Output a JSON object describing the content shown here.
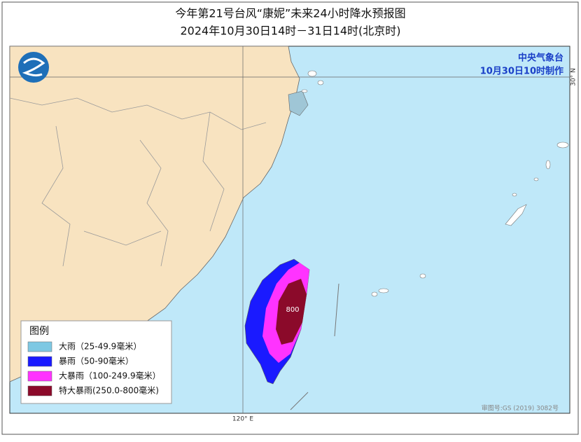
{
  "header": {
    "title": "今年第21号台风“康妮”未来24小时降水预报图",
    "subtitle": "2024年10月30日14时－31日14时(北京时)"
  },
  "issuer": {
    "agency": "中央气象台",
    "made": "10月30日10时制作"
  },
  "map": {
    "lat_label": "30° N",
    "lon_label": "120° E",
    "contour_label": "800",
    "review_number": "审图号:GS (2019) 3082号"
  },
  "legend": {
    "title": "图例",
    "items": [
      {
        "label": "大雨（25-49.9毫米）",
        "color": "#7ec8e3"
      },
      {
        "label": "暴雨（50-90毫米）",
        "color": "#1a1aff"
      },
      {
        "label": "大暴雨（100-249.9毫米）",
        "color": "#ff33ff"
      },
      {
        "label": "特大暴雨(250.0-800毫米)",
        "color": "#8b0a2a"
      }
    ]
  }
}
